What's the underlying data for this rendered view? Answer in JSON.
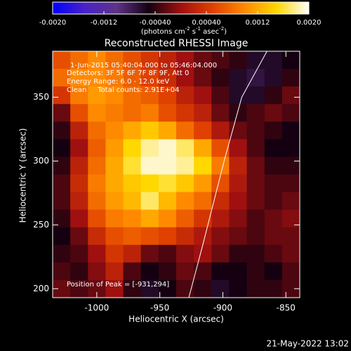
{
  "chart_data": {
    "type": "heatmap",
    "title": "Reconstructed RHESSI Image",
    "xlabel": "Heliocentric X (arcsec)",
    "ylabel": "Heliocentric Y (arcsec)",
    "colorbar_label": [
      "(photons cm",
      "-2",
      " s",
      "-1",
      " asec",
      "-2",
      ")"
    ],
    "annotations": [
      "1-Jun-2015 05:40:04.000 to 05:46:04.000",
      "Detectors: 3F 5F 6F 7F 8F 9F, Att 0",
      "Energy Range: 6.0 - 12.0 keV",
      "Clean     Total counts: 2.91E+04"
    ],
    "peak_label": "Position of Peak = [-931,294]",
    "footer": "21-May-2022 13:02",
    "xlim": [
      -1035,
      -839
    ],
    "ylim": [
      386,
      193
    ],
    "xticks": [
      -1000,
      -950,
      -900,
      -850
    ],
    "yticks": [
      350,
      300,
      250,
      200
    ],
    "clim": [
      -0.002,
      0.002
    ],
    "cticks": [
      {
        "value": -0.002,
        "label": "-0.0020"
      },
      -0.0012,
      {
        "value": -0.0004,
        "label": "-0.00040"
      },
      {
        "value": 0.0004,
        "label": "0.00040"
      },
      0.0012,
      {
        "value": 0.002,
        "label": "0.0020"
      }
    ],
    "colormap": [
      "#0000ff",
      "#4a22c8",
      "#5e3388",
      "#140010",
      "#a01010",
      "#e04000",
      "#ff8a00",
      "#ffd800",
      "#ffffff"
    ],
    "limb": {
      "color": "#ffffff",
      "x": [
        -927,
        -916,
        -899,
        -885,
        -865
      ],
      "y": [
        193,
        234,
        300,
        350,
        386
      ]
    },
    "z": [
      [
        0.0006,
        0.0008,
        0.001,
        0.0008,
        0.0006,
        0.0004,
        0.0002,
        0,
        -0.0002,
        -0.0003,
        -0.0004,
        -0.0006,
        -0.0006,
        -0.0005
      ],
      [
        0.0008,
        0.001,
        0.001,
        0.0009,
        0.0007,
        0.0005,
        0.0003,
        0,
        -0.0002,
        -0.0004,
        -0.0006,
        -0.0007,
        -0.0006,
        -0.0004
      ],
      [
        0.0004,
        0.0009,
        0.0011,
        0.001,
        0.0008,
        0.0007,
        0.0005,
        0.0002,
        0,
        -0.0003,
        -0.0006,
        -0.0006,
        -0.0004,
        -0.0002
      ],
      [
        -0.0002,
        0.0006,
        0.001,
        0.0009,
        0.0008,
        0.0009,
        0.0006,
        0.0004,
        0.0002,
        -0.0002,
        -0.0004,
        -0.0003,
        -0.0002,
        -0.0003
      ],
      [
        -0.0004,
        0.0002,
        0.0008,
        0.001,
        0.0012,
        0.0014,
        0.0012,
        0.0008,
        0.0005,
        0.0001,
        -0.0002,
        -0.0003,
        -0.0004,
        -0.0005
      ],
      [
        -0.0005,
        0,
        0.0007,
        0.0011,
        0.0015,
        0.0018,
        0.0019,
        0.0017,
        0.0012,
        0.0006,
        0,
        -0.0003,
        -0.0005,
        -0.0005
      ],
      [
        -0.0004,
        0.0002,
        0.0008,
        0.0012,
        0.0016,
        0.0019,
        0.0019,
        0.0018,
        0.0015,
        0.0009,
        0.0002,
        -0.0002,
        -0.0004,
        -0.0004
      ],
      [
        -0.0003,
        0.0003,
        0.0009,
        0.0012,
        0.0014,
        0.0015,
        0.0016,
        0.0014,
        0.0011,
        0.0006,
        0.0001,
        -0.0002,
        -0.0003,
        -0.0003
      ],
      [
        -0.0003,
        0.0002,
        0.0008,
        0.0011,
        0.0013,
        0.0017,
        0.0013,
        0.001,
        0.0008,
        0.0003,
        0,
        -0.0002,
        -0.0003,
        -0.0002
      ],
      [
        -0.0004,
        0,
        0.0006,
        0.0009,
        0.001,
        0.0012,
        0.001,
        0.0007,
        0.0004,
        0.0001,
        -0.0001,
        -0.0003,
        -0.0002,
        -0.0001
      ],
      [
        -0.0005,
        -0.0002,
        0.0003,
        0.0006,
        0.0007,
        0.0006,
        0.0005,
        0.0003,
        0.0001,
        -0.0001,
        -0.0002,
        -0.0003,
        -0.0002,
        -0.0002
      ],
      [
        -0.0004,
        -0.0003,
        0,
        0.0004,
        0.0002,
        -0.0002,
        -0.0003,
        -0.0001,
        0,
        -0.0002,
        -0.0004,
        -0.0004,
        -0.0003,
        -0.0002
      ],
      [
        -0.0003,
        -0.0004,
        -0.0001,
        0.0002,
        -0.0003,
        -0.0005,
        -0.0004,
        -0.0002,
        -0.0003,
        -0.0005,
        -0.0005,
        -0.0004,
        -0.0005,
        -0.0003
      ],
      [
        -0.0002,
        -0.0003,
        -0.0002,
        0,
        -0.0004,
        -0.0006,
        -0.0005,
        -0.0003,
        -0.0004,
        -0.0006,
        -0.0005,
        -0.0004,
        -0.0004,
        -0.0003
      ]
    ]
  }
}
